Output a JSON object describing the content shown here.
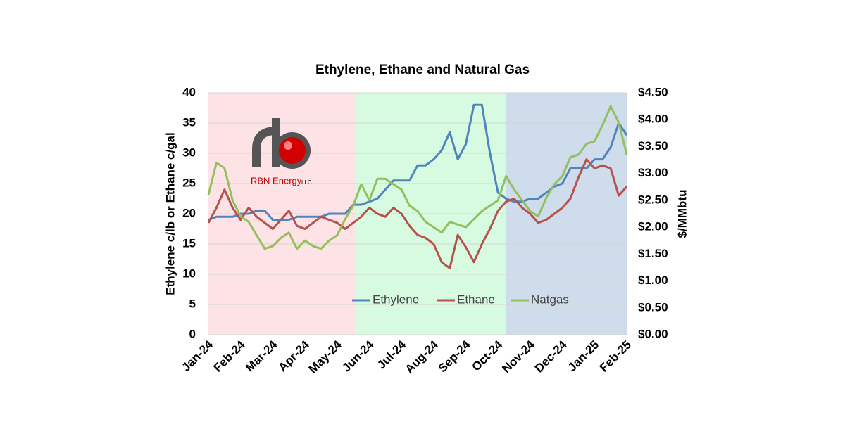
{
  "chart_data": {
    "type": "line",
    "title": "Ethylene, Ethane and Natural Gas",
    "y_label": "Ethylene c/lb or Ethane c/gal",
    "y2_label": "$/MMbtu",
    "logo": {
      "text": "RBN Energy",
      "suffix": "LLC"
    },
    "categories": [
      "Jan-24",
      null,
      null,
      null,
      "Feb-24",
      null,
      null,
      null,
      "Mar-24",
      null,
      null,
      null,
      "Apr-24",
      null,
      null,
      null,
      "May-24",
      null,
      null,
      null,
      "Jun-24",
      null,
      null,
      null,
      "Jul-24",
      null,
      null,
      null,
      "Aug-24",
      null,
      null,
      null,
      "Sep-24",
      null,
      null,
      null,
      "Oct-24",
      null,
      null,
      null,
      "Nov-24",
      null,
      null,
      null,
      "Dec-24",
      null,
      null,
      null,
      "Jan-25",
      null,
      null,
      null,
      "Feb-25"
    ],
    "series": [
      {
        "name": "Ethylene",
        "color": "#4f84bd",
        "values": [
          19,
          19.5,
          19.5,
          19.5,
          20,
          20,
          20.5,
          20.5,
          19,
          19,
          19,
          19.5,
          19.5,
          19.5,
          19.5,
          20,
          20,
          20,
          21.5,
          21.5,
          22,
          22.5,
          24,
          25.5,
          25.5,
          25.5,
          28,
          28,
          29,
          30.5,
          33.5,
          29,
          31.5,
          38,
          38,
          30,
          23.5,
          22.5,
          22,
          22,
          22.5,
          22.5,
          23.5,
          24.5,
          25,
          27.5,
          27.5,
          27.5,
          29,
          29,
          31,
          35,
          33
        ]
      },
      {
        "name": "Ethane",
        "color": "#b5524e",
        "values": [
          18.5,
          21,
          24,
          21,
          19,
          21,
          19.5,
          18.5,
          17.5,
          19,
          20.5,
          18,
          17.5,
          18.5,
          19.5,
          19,
          18.5,
          17.5,
          18.5,
          19.5,
          21,
          20,
          19.5,
          21,
          20,
          18,
          16.5,
          16,
          15,
          12,
          11,
          16.5,
          14.5,
          12,
          15,
          17.5,
          20.5,
          22,
          22.5,
          21,
          20,
          18.5,
          19,
          20,
          21,
          22.5,
          26,
          29,
          27.5,
          28,
          27.5,
          23,
          24.5
        ]
      },
      {
        "name": "Natgas",
        "color": "#93c05c",
        "axis": "y2",
        "values": [
          2.6,
          3.2,
          3.1,
          2.5,
          2.2,
          2.1,
          1.85,
          1.6,
          1.65,
          1.8,
          1.9,
          1.6,
          1.75,
          1.65,
          1.6,
          1.75,
          1.85,
          2.15,
          2.4,
          2.8,
          2.5,
          2.9,
          2.9,
          2.8,
          2.7,
          2.4,
          2.3,
          2.1,
          2.0,
          1.9,
          2.1,
          2.05,
          2.0,
          2.15,
          2.3,
          2.4,
          2.5,
          2.95,
          2.7,
          2.5,
          2.3,
          2.2,
          2.55,
          2.8,
          2.95,
          3.3,
          3.35,
          3.55,
          3.6,
          3.9,
          4.25,
          3.95,
          3.35
        ]
      }
    ],
    "ylim": [
      0,
      40
    ],
    "yticks": [
      0,
      5,
      10,
      15,
      20,
      25,
      30,
      35,
      40
    ],
    "y2lim": [
      0,
      4.5
    ],
    "y2ticks": [
      {
        "value": 0,
        "label": "$0.00"
      },
      {
        "value": 0.5,
        "label": "$0.50"
      },
      {
        "value": 1,
        "label": "$1.00"
      },
      {
        "value": 1.5,
        "label": "$1.50"
      },
      {
        "value": 2,
        "label": "$2.00"
      },
      {
        "value": 2.5,
        "label": "$2.50"
      },
      {
        "value": 3,
        "label": "$3.00"
      },
      {
        "value": 3.5,
        "label": "$3.50"
      },
      {
        "value": 4,
        "label": "$4.00"
      },
      {
        "value": 4.5,
        "label": "$4.50"
      }
    ],
    "grid": true
  }
}
